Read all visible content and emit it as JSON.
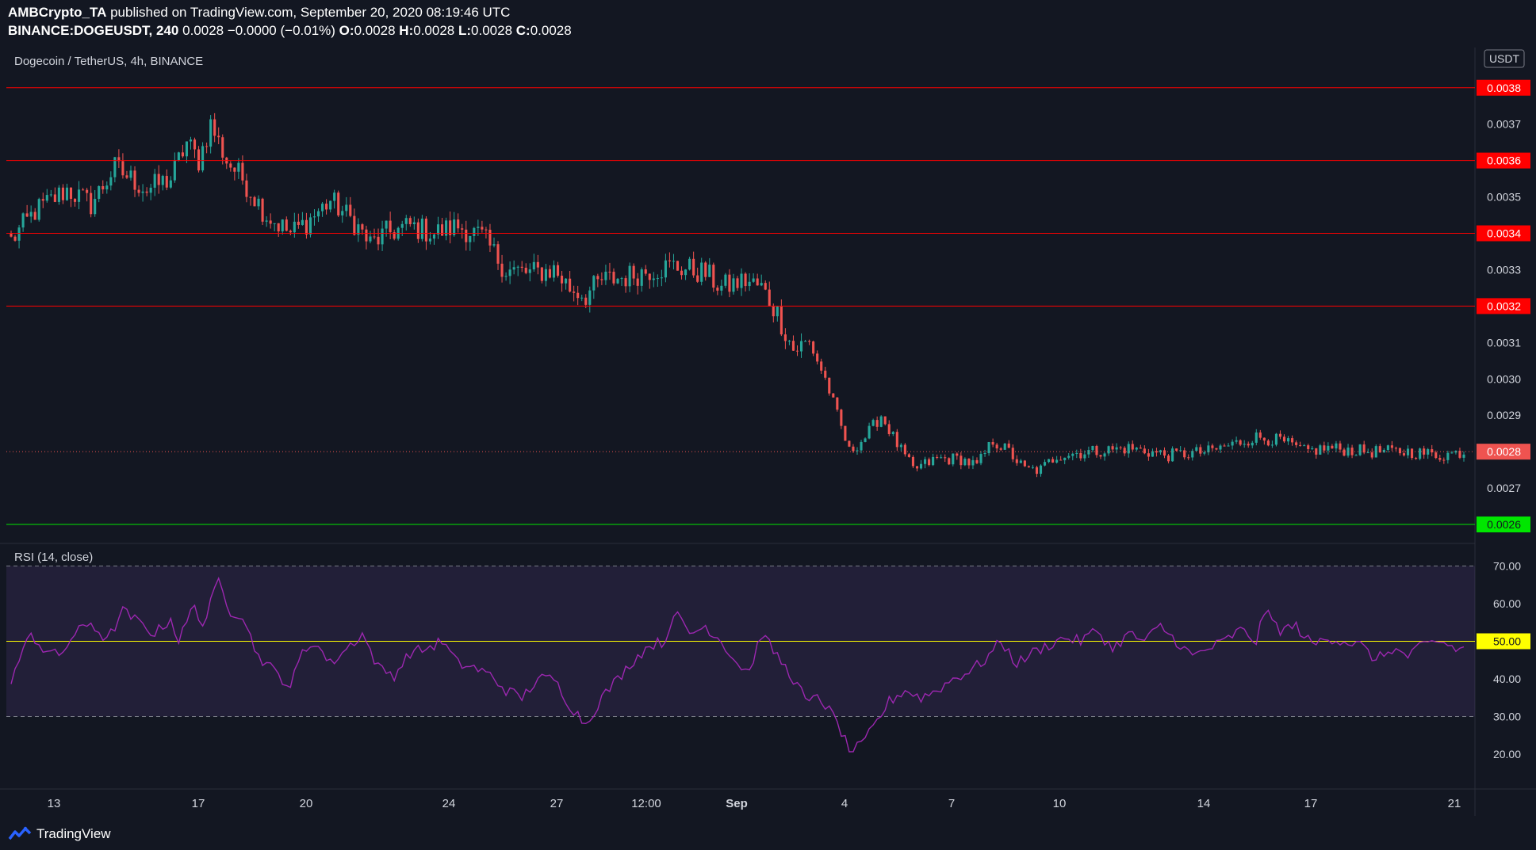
{
  "header": {
    "publisher": "AMBCrypto_TA",
    "published_text": "published on TradingView.com, September 20, 2020 08:19:46 UTC",
    "symbol": "BINANCE:DOGEUSDT, 240",
    "quote": "0.0028 −0.0000 (−0.01%)",
    "o_label": "O:",
    "o_value": "0.0028",
    "h_label": "H:",
    "h_value": "0.0028",
    "l_label": "L:",
    "l_value": "0.0028",
    "c_label": "C:",
    "c_value": "0.0028"
  },
  "footer": {
    "brand": "TradingView"
  },
  "colors": {
    "background": "#131722",
    "up": "#26a69a",
    "down": "#ef5350",
    "resistance": "#ff0000",
    "support": "#00e600",
    "rsi_line": "#9c27b0",
    "rsi_band": "#7e57c2",
    "rsi_mid": "#ffff00"
  },
  "chart_data": [
    {
      "type": "candlestick",
      "title": "Dogecoin / TetherUS, 4h, BINANCE",
      "currency": "USDT",
      "ylim": [
        0.00255,
        0.00388
      ],
      "y_ticks": [
        "0.0037",
        "0.0035",
        "0.0034",
        "0.0033",
        "0.0032",
        "0.0031",
        "0.0030",
        "0.0029",
        "0.0027"
      ],
      "x_ticks": [
        "13",
        "17",
        "20",
        "24",
        "27",
        "12:00",
        "Sep",
        "4",
        "7",
        "10",
        "14",
        "17",
        "21"
      ],
      "horizontal_lines": [
        {
          "value": 0.0038,
          "label": "0.0038",
          "color": "#ff0000"
        },
        {
          "value": 0.0036,
          "label": "0.0036",
          "color": "#ff0000"
        },
        {
          "value": 0.0034,
          "label": "0.0034",
          "color": "#ff0000"
        },
        {
          "value": 0.0032,
          "label": "0.0032",
          "color": "#ff0000"
        },
        {
          "value": 0.0026,
          "label": "0.0026",
          "color": "#00e600"
        }
      ],
      "last_price": {
        "value": 0.0028,
        "label": "0.0028"
      },
      "anchors": [
        [
          0,
          0.00338
        ],
        [
          6,
          0.00346
        ],
        [
          14,
          0.00352
        ],
        [
          20,
          0.00348
        ],
        [
          26,
          0.00358
        ],
        [
          34,
          0.00352
        ],
        [
          40,
          0.00355
        ],
        [
          44,
          0.00365
        ],
        [
          47,
          0.0036
        ],
        [
          50,
          0.0037
        ],
        [
          54,
          0.0036
        ],
        [
          58,
          0.00355
        ],
        [
          64,
          0.00345
        ],
        [
          70,
          0.0034
        ],
        [
          74,
          0.00343
        ],
        [
          80,
          0.00349
        ],
        [
          86,
          0.00343
        ],
        [
          90,
          0.00337
        ],
        [
          94,
          0.0034
        ],
        [
          100,
          0.00342
        ],
        [
          106,
          0.0034
        ],
        [
          112,
          0.00342
        ],
        [
          118,
          0.00339
        ],
        [
          124,
          0.0033
        ],
        [
          130,
          0.00329
        ],
        [
          136,
          0.0033
        ],
        [
          140,
          0.00325
        ],
        [
          144,
          0.00323
        ],
        [
          148,
          0.00327
        ],
        [
          154,
          0.00328
        ],
        [
          160,
          0.0033
        ],
        [
          166,
          0.00331
        ],
        [
          170,
          0.0033
        ],
        [
          174,
          0.00329
        ],
        [
          178,
          0.00325
        ],
        [
          184,
          0.00327
        ],
        [
          188,
          0.00325
        ],
        [
          192,
          0.00318
        ],
        [
          196,
          0.00308
        ],
        [
          200,
          0.0031
        ],
        [
          204,
          0.003
        ],
        [
          207,
          0.0029
        ],
        [
          210,
          0.0028
        ],
        [
          214,
          0.00284
        ],
        [
          218,
          0.0029
        ],
        [
          222,
          0.00282
        ],
        [
          226,
          0.00275
        ],
        [
          232,
          0.00278
        ],
        [
          238,
          0.00278
        ],
        [
          242,
          0.00276
        ],
        [
          246,
          0.00283
        ],
        [
          250,
          0.0028
        ],
        [
          254,
          0.00275
        ],
        [
          258,
          0.00275
        ],
        [
          262,
          0.00279
        ],
        [
          270,
          0.0028
        ],
        [
          280,
          0.00281
        ],
        [
          290,
          0.00279
        ],
        [
          300,
          0.0028
        ],
        [
          306,
          0.00282
        ],
        [
          312,
          0.00284
        ],
        [
          318,
          0.00283
        ],
        [
          324,
          0.0028
        ],
        [
          330,
          0.00281
        ],
        [
          340,
          0.0028
        ],
        [
          350,
          0.0028
        ],
        [
          358,
          0.00279
        ],
        [
          364,
          0.0028
        ]
      ]
    },
    {
      "type": "line",
      "title": "RSI (14, close)",
      "ylim": [
        12,
        76
      ],
      "y_ticks": [
        "70.00",
        "60.00",
        "40.00",
        "30.00",
        "20.00"
      ],
      "overbought": 70,
      "oversold": 30,
      "midline": {
        "value": 50,
        "label": "50.00"
      },
      "series": [
        [
          [
            0,
            40
          ],
          [
            5,
            52
          ],
          [
            8,
            48
          ],
          [
            12,
            46
          ],
          [
            16,
            52
          ],
          [
            20,
            55
          ],
          [
            24,
            50
          ],
          [
            28,
            58
          ],
          [
            32,
            55
          ],
          [
            36,
            52
          ],
          [
            40,
            56
          ],
          [
            42,
            50
          ],
          [
            46,
            60
          ],
          [
            48,
            54
          ],
          [
            52,
            66
          ],
          [
            55,
            58
          ],
          [
            58,
            57
          ],
          [
            60,
            51
          ],
          [
            62,
            46
          ],
          [
            66,
            42
          ],
          [
            70,
            38
          ],
          [
            73,
            47
          ],
          [
            76,
            50
          ],
          [
            80,
            44
          ],
          [
            84,
            48
          ],
          [
            88,
            52
          ],
          [
            92,
            43
          ],
          [
            96,
            41
          ],
          [
            100,
            47
          ],
          [
            104,
            48
          ],
          [
            108,
            50
          ],
          [
            112,
            44
          ],
          [
            116,
            43
          ],
          [
            120,
            41
          ],
          [
            124,
            37
          ],
          [
            128,
            35
          ],
          [
            132,
            40
          ],
          [
            136,
            40
          ],
          [
            140,
            33
          ],
          [
            144,
            28
          ],
          [
            148,
            35
          ],
          [
            152,
            40
          ],
          [
            156,
            45
          ],
          [
            160,
            49
          ],
          [
            164,
            50
          ],
          [
            166,
            58
          ],
          [
            170,
            52
          ],
          [
            174,
            54
          ],
          [
            178,
            50
          ],
          [
            182,
            44
          ],
          [
            185,
            42
          ],
          [
            188,
            52
          ],
          [
            192,
            46
          ],
          [
            196,
            40
          ],
          [
            200,
            33
          ],
          [
            202,
            36
          ],
          [
            206,
            30
          ],
          [
            208,
            26
          ],
          [
            210,
            21
          ],
          [
            213,
            22
          ],
          [
            216,
            27
          ],
          [
            220,
            34
          ],
          [
            224,
            37
          ],
          [
            228,
            35
          ],
          [
            232,
            37
          ],
          [
            236,
            40
          ],
          [
            240,
            42
          ],
          [
            244,
            45
          ],
          [
            248,
            50
          ],
          [
            252,
            44
          ],
          [
            256,
            47
          ],
          [
            260,
            49
          ],
          [
            264,
            51
          ],
          [
            268,
            50
          ],
          [
            272,
            53
          ],
          [
            276,
            48
          ],
          [
            280,
            52
          ],
          [
            284,
            50
          ],
          [
            288,
            54
          ],
          [
            292,
            50
          ],
          [
            296,
            46
          ],
          [
            300,
            48
          ],
          [
            304,
            50
          ],
          [
            308,
            53
          ],
          [
            312,
            50
          ],
          [
            314,
            58
          ],
          [
            318,
            53
          ],
          [
            322,
            54
          ],
          [
            326,
            49
          ],
          [
            330,
            51
          ],
          [
            334,
            50
          ],
          [
            338,
            49
          ],
          [
            342,
            45
          ],
          [
            346,
            48
          ],
          [
            350,
            46
          ],
          [
            354,
            49
          ],
          [
            358,
            50
          ],
          [
            362,
            48
          ]
        ]
      ]
    }
  ]
}
